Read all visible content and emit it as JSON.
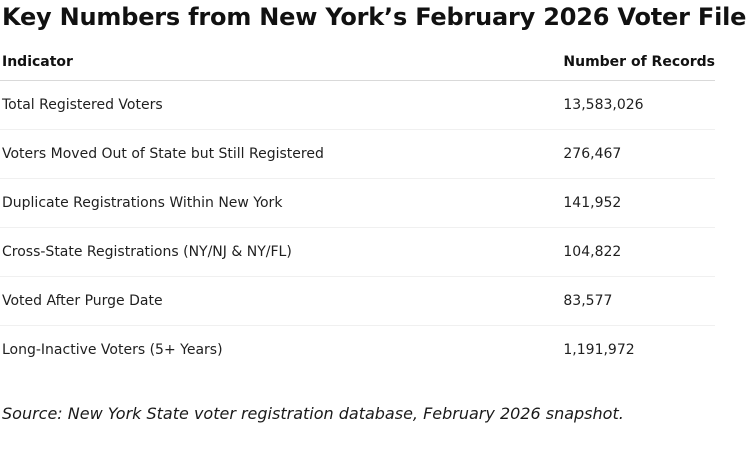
{
  "title": "Key Numbers from New York’s February 2026 Voter File",
  "table": {
    "headers": [
      "Indicator",
      "Number of Records"
    ],
    "rows": [
      {
        "indicator": "Total Registered Voters",
        "value": "13,583,026"
      },
      {
        "indicator": "Voters Moved Out of State but Still Registered",
        "value": "276,467"
      },
      {
        "indicator": "Duplicate Registrations Within New York",
        "value": "141,952"
      },
      {
        "indicator": "Cross-State Registrations (NY/NJ & NY/FL)",
        "value": "104,822"
      },
      {
        "indicator": "Voted After Purge Date",
        "value": "83,577"
      },
      {
        "indicator": "Long-Inactive Voters (5+ Years)",
        "value": "1,191,972"
      }
    ]
  },
  "source": "Source: New York State voter registration database, February 2026 snapshot."
}
